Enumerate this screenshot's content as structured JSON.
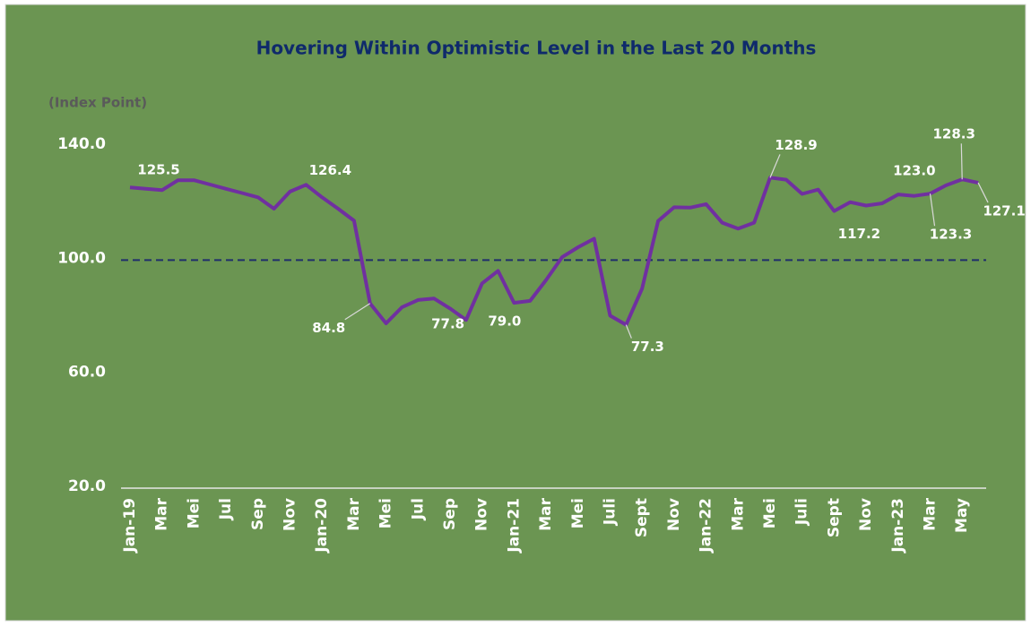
{
  "chart_data": {
    "type": "line",
    "title": "Hovering Within Optimistic Level in the Last 20 Months",
    "y_axis_label": "(Index Point)",
    "categories": [
      "Jan-19",
      null,
      "Mar",
      null,
      "Mei",
      null,
      "Jul",
      null,
      "Sep",
      null,
      "Nov",
      null,
      "Jan-20",
      null,
      "Mar",
      null,
      "Mei",
      null,
      "Jul",
      null,
      "Sep",
      null,
      "Nov",
      null,
      "Jan-21",
      null,
      "Mar",
      null,
      "Mei",
      null,
      "Juli",
      null,
      "Sept",
      null,
      "Nov",
      null,
      "Jan-22",
      null,
      "Mar",
      null,
      "Mei",
      null,
      "Juli",
      null,
      "Sept",
      null,
      "Nov",
      null,
      "Jan-23",
      null,
      "Mar",
      null,
      "May",
      null
    ],
    "series": [
      {
        "name": "Index",
        "color": "#7030a0",
        "values": [
          125.5,
          125,
          124.5,
          128,
          128,
          126.5,
          125,
          123.5,
          122,
          118,
          124,
          126.4,
          122,
          118,
          113.8,
          84.8,
          77.8,
          83.5,
          86,
          86.5,
          83,
          79.0,
          91.8,
          96.2,
          85.0,
          85.7,
          93,
          101,
          104.5,
          107.5,
          80.5,
          77.3,
          90,
          113.7,
          118.5,
          118.4,
          119.6,
          113.1,
          111,
          113.1,
          128.9,
          128.2,
          123.2,
          124.7,
          117.2,
          120.3,
          119.1,
          119.9,
          123.0,
          122.5,
          123.3,
          126.2,
          128.3,
          127.1
        ],
        "value_labels": [
          "125.5",
          null,
          null,
          null,
          null,
          null,
          null,
          null,
          null,
          null,
          null,
          "126.4",
          null,
          null,
          null,
          "84.8",
          "77.8",
          null,
          null,
          null,
          null,
          "79.0",
          null,
          null,
          null,
          null,
          null,
          null,
          null,
          null,
          null,
          "77.3",
          null,
          null,
          null,
          null,
          null,
          null,
          null,
          null,
          "128.9",
          null,
          null,
          null,
          "117.2",
          null,
          null,
          null,
          "123.0",
          null,
          "123.3",
          null,
          "128.3",
          "127.1"
        ]
      }
    ],
    "ylim": [
      20,
      140
    ],
    "yticks": [
      {
        "value": 20,
        "label": "20.0"
      },
      {
        "value": 60,
        "label": "60.0"
      },
      {
        "value": 100,
        "label": "100.0"
      },
      {
        "value": 140,
        "label": "140.0"
      }
    ],
    "reference_line": {
      "value": 100,
      "color": "#1f2d6b",
      "style": "dashed"
    },
    "grid": false
  }
}
